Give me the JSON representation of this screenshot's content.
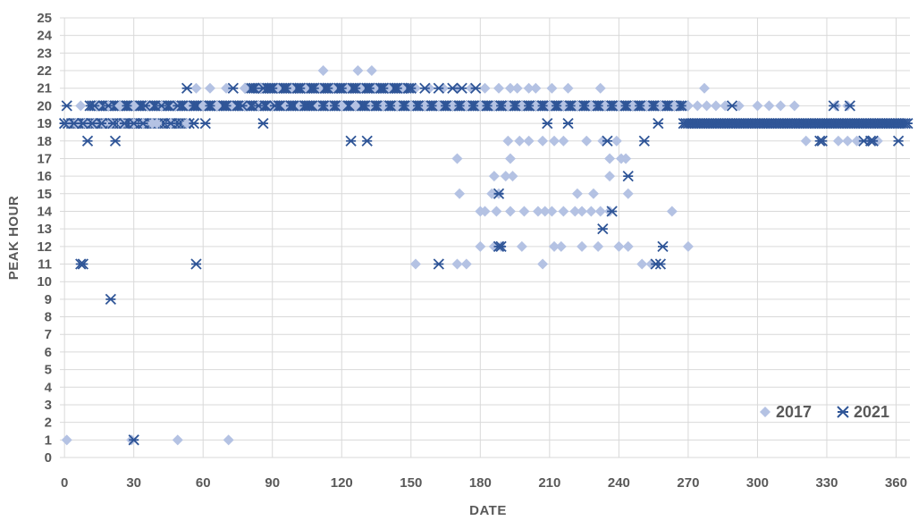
{
  "chart_data": {
    "type": "scatter",
    "xlabel": "DATE",
    "ylabel": "PEAK  HOUR",
    "xlim": [
      -2,
      366
    ],
    "ylim": [
      0,
      25
    ],
    "x_ticks": [
      0,
      30,
      60,
      90,
      120,
      150,
      180,
      210,
      240,
      270,
      300,
      330,
      360
    ],
    "y_ticks": [
      0,
      1,
      2,
      3,
      4,
      5,
      6,
      7,
      8,
      9,
      10,
      11,
      12,
      13,
      14,
      15,
      16,
      17,
      18,
      19,
      20,
      21,
      22,
      23,
      24,
      25
    ],
    "grid": true,
    "legend_position": "bottom-right",
    "series": [
      {
        "name": "2017",
        "marker": "diamond",
        "color": "#B4C2E3",
        "points": [
          [
            1,
            1
          ],
          [
            29,
            1
          ],
          [
            49,
            1
          ],
          [
            71,
            1
          ],
          [
            2,
            19
          ],
          [
            5,
            19
          ],
          [
            9,
            19
          ],
          [
            13,
            19
          ],
          [
            17,
            19
          ],
          [
            20,
            19
          ],
          [
            25,
            19
          ],
          [
            30,
            19
          ],
          [
            34,
            19
          ],
          [
            38,
            19
          ],
          [
            40,
            19
          ],
          [
            46,
            19
          ],
          [
            53,
            19
          ],
          [
            7,
            20
          ],
          [
            14,
            20
          ],
          [
            19,
            20
          ],
          [
            24,
            20
          ],
          [
            30,
            20
          ],
          [
            36,
            20
          ],
          [
            42,
            20
          ],
          [
            48,
            20
          ],
          [
            54,
            20
          ],
          [
            60,
            20
          ],
          [
            66,
            20
          ],
          [
            72,
            20
          ],
          [
            78,
            20
          ],
          [
            84,
            20
          ],
          [
            90,
            20
          ],
          [
            96,
            20
          ],
          [
            102,
            20
          ],
          [
            110,
            20
          ],
          [
            115,
            20
          ],
          [
            120,
            20
          ],
          [
            126,
            20
          ],
          [
            132,
            20
          ],
          [
            138,
            20
          ],
          [
            144,
            20
          ],
          [
            150,
            20
          ],
          [
            156,
            20
          ],
          [
            162,
            20
          ],
          [
            168,
            20
          ],
          [
            174,
            20
          ],
          [
            180,
            20
          ],
          [
            186,
            20
          ],
          [
            192,
            20
          ],
          [
            198,
            20
          ],
          [
            204,
            20
          ],
          [
            210,
            20
          ],
          [
            216,
            20
          ],
          [
            222,
            20
          ],
          [
            228,
            20
          ],
          [
            234,
            20
          ],
          [
            240,
            20
          ],
          [
            246,
            20
          ],
          [
            252,
            20
          ],
          [
            258,
            20
          ],
          [
            264,
            20
          ],
          [
            270,
            20
          ],
          [
            274,
            20
          ],
          [
            278,
            20
          ],
          [
            282,
            20
          ],
          [
            286,
            20
          ],
          [
            292,
            20
          ],
          [
            300,
            20
          ],
          [
            305,
            20
          ],
          [
            310,
            20
          ],
          [
            316,
            20
          ],
          [
            334,
            20
          ],
          [
            339,
            20
          ],
          [
            57,
            21
          ],
          [
            63,
            21
          ],
          [
            70,
            21
          ],
          [
            78,
            21
          ],
          [
            85,
            21
          ],
          [
            92,
            21
          ],
          [
            98,
            21
          ],
          [
            104,
            21
          ],
          [
            110,
            21
          ],
          [
            116,
            21
          ],
          [
            122,
            21
          ],
          [
            128,
            21
          ],
          [
            134,
            21
          ],
          [
            140,
            21
          ],
          [
            146,
            21
          ],
          [
            152,
            21
          ],
          [
            158,
            21
          ],
          [
            164,
            21
          ],
          [
            170,
            21
          ],
          [
            176,
            21
          ],
          [
            182,
            21
          ],
          [
            188,
            21
          ],
          [
            193,
            21
          ],
          [
            196,
            21
          ],
          [
            201,
            21
          ],
          [
            204,
            21
          ],
          [
            211,
            21
          ],
          [
            218,
            21
          ],
          [
            232,
            21
          ],
          [
            277,
            21
          ],
          [
            112,
            22
          ],
          [
            127,
            22
          ],
          [
            133,
            22
          ],
          [
            170,
            17
          ],
          [
            193,
            17
          ],
          [
            236,
            17
          ],
          [
            241,
            17
          ],
          [
            243,
            17
          ],
          [
            186,
            16
          ],
          [
            191,
            16
          ],
          [
            194,
            16
          ],
          [
            236,
            16
          ],
          [
            171,
            15
          ],
          [
            185,
            15
          ],
          [
            188,
            15
          ],
          [
            222,
            15
          ],
          [
            229,
            15
          ],
          [
            244,
            15
          ],
          [
            180,
            14
          ],
          [
            182,
            14
          ],
          [
            187,
            14
          ],
          [
            193,
            14
          ],
          [
            199,
            14
          ],
          [
            205,
            14
          ],
          [
            208,
            14
          ],
          [
            211,
            14
          ],
          [
            216,
            14
          ],
          [
            221,
            14
          ],
          [
            224,
            14
          ],
          [
            228,
            14
          ],
          [
            232,
            14
          ],
          [
            236,
            14
          ],
          [
            263,
            14
          ],
          [
            180,
            12
          ],
          [
            186,
            12
          ],
          [
            189,
            12
          ],
          [
            198,
            12
          ],
          [
            212,
            12
          ],
          [
            215,
            12
          ],
          [
            224,
            12
          ],
          [
            231,
            12
          ],
          [
            240,
            12
          ],
          [
            244,
            12
          ],
          [
            270,
            12
          ],
          [
            152,
            11
          ],
          [
            170,
            11
          ],
          [
            174,
            11
          ],
          [
            207,
            11
          ],
          [
            250,
            11
          ],
          [
            254,
            11
          ],
          [
            192,
            18
          ],
          [
            197,
            18
          ],
          [
            201,
            18
          ],
          [
            207,
            18
          ],
          [
            212,
            18
          ],
          [
            216,
            18
          ],
          [
            226,
            18
          ],
          [
            233,
            18
          ],
          [
            239,
            18
          ],
          [
            321,
            18
          ],
          [
            335,
            18
          ],
          [
            339,
            18
          ],
          [
            343,
            18
          ],
          [
            348,
            18
          ],
          [
            352,
            18
          ]
        ]
      },
      {
        "name": "2021",
        "marker": "asterisk",
        "color": "#2F5597",
        "points": [
          [
            7,
            11
          ],
          [
            8,
            11
          ],
          [
            57,
            11
          ],
          [
            162,
            11
          ],
          [
            256,
            11
          ],
          [
            258,
            11
          ],
          [
            20,
            9
          ],
          [
            30,
            1
          ],
          [
            10,
            18
          ],
          [
            22,
            18
          ],
          [
            124,
            18
          ],
          [
            131,
            18
          ],
          [
            327,
            18
          ],
          [
            328,
            18
          ],
          [
            346,
            18
          ],
          [
            349,
            18
          ],
          [
            350,
            18
          ],
          [
            361,
            18
          ],
          [
            0,
            19
          ],
          [
            4,
            19
          ],
          [
            8,
            19
          ],
          [
            12,
            19
          ],
          [
            16,
            19
          ],
          [
            21,
            19
          ],
          [
            26,
            19
          ],
          [
            30,
            19
          ],
          [
            34,
            19
          ],
          [
            46,
            19
          ],
          [
            56,
            19
          ],
          [
            61,
            19
          ],
          [
            86,
            19
          ],
          [
            209,
            19
          ],
          [
            218,
            19
          ],
          [
            257,
            19
          ],
          [
            1,
            20
          ],
          [
            13,
            20
          ],
          [
            19,
            20
          ],
          [
            27,
            20
          ],
          [
            35,
            20
          ],
          [
            42,
            20
          ],
          [
            49,
            20
          ],
          [
            56,
            20
          ],
          [
            63,
            20
          ],
          [
            70,
            20
          ],
          [
            77,
            20
          ],
          [
            84,
            20
          ],
          [
            91,
            20
          ],
          [
            98,
            20
          ],
          [
            104,
            20
          ],
          [
            112,
            20
          ],
          [
            117,
            20
          ],
          [
            130,
            20
          ],
          [
            135,
            20
          ],
          [
            141,
            20
          ],
          [
            147,
            20
          ],
          [
            153,
            20
          ],
          [
            159,
            20
          ],
          [
            165,
            20
          ],
          [
            171,
            20
          ],
          [
            177,
            20
          ],
          [
            183,
            20
          ],
          [
            189,
            20
          ],
          [
            195,
            20
          ],
          [
            201,
            20
          ],
          [
            207,
            20
          ],
          [
            213,
            20
          ],
          [
            219,
            20
          ],
          [
            225,
            20
          ],
          [
            231,
            20
          ],
          [
            237,
            20
          ],
          [
            243,
            20
          ],
          [
            249,
            20
          ],
          [
            255,
            20
          ],
          [
            261,
            20
          ],
          [
            267,
            20
          ],
          [
            289,
            20
          ],
          [
            333,
            20
          ],
          [
            340,
            20
          ],
          [
            53,
            21
          ],
          [
            73,
            21
          ],
          [
            82,
            21
          ],
          [
            86,
            21
          ],
          [
            90,
            21
          ],
          [
            96,
            21
          ],
          [
            102,
            21
          ],
          [
            108,
            21
          ],
          [
            114,
            21
          ],
          [
            120,
            21
          ],
          [
            126,
            21
          ],
          [
            132,
            21
          ],
          [
            138,
            21
          ],
          [
            144,
            21
          ],
          [
            150,
            21
          ],
          [
            156,
            21
          ],
          [
            162,
            21
          ],
          [
            168,
            21
          ],
          [
            172,
            21
          ],
          [
            178,
            21
          ],
          [
            188,
            12
          ],
          [
            189,
            12
          ],
          [
            259,
            12
          ],
          [
            233,
            13
          ],
          [
            237,
            14
          ],
          [
            188,
            15
          ],
          [
            244,
            16
          ],
          [
            235,
            18
          ],
          [
            251,
            18
          ]
        ],
        "dense_runs": [
          {
            "y": 19,
            "x_from": 0,
            "x_to": 55,
            "step": 1.5
          },
          {
            "y": 20,
            "x_from": 11,
            "x_to": 268,
            "step": 1
          },
          {
            "y": 21,
            "x_from": 80,
            "x_to": 150,
            "step": 1
          },
          {
            "y": 19,
            "x_from": 268,
            "x_to": 365,
            "step": 1
          }
        ]
      }
    ]
  },
  "legend": {
    "items": [
      {
        "label": "2017"
      },
      {
        "label": "2021"
      }
    ]
  }
}
